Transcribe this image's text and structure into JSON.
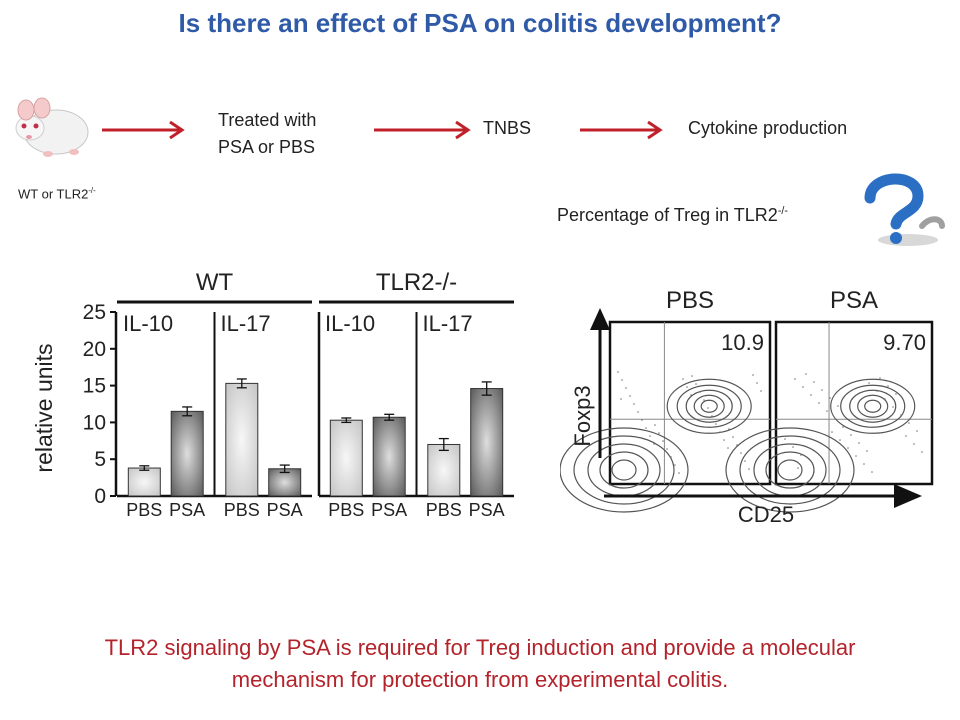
{
  "slide": {
    "title": "Is there an effect of PSA on colitis development?",
    "conclusion_line1": "TLR2 signaling by PSA is required for Treg induction and provide a molecular",
    "conclusion_line2": "mechanism for protection from experimental colitis.",
    "title_color": "#2f5aa8",
    "conclusion_color": "#b3232b",
    "arrow_color": "#c0202a"
  },
  "workflow": {
    "mouse_label": "WT or TLR2",
    "mouse_label_sup": "-/-",
    "step1_line1": "Treated with",
    "step1_line2": "PSA or PBS",
    "step2": "TNBS",
    "step3": "Cytokine production",
    "question_prefix": "Percentage of Treg in TLR2",
    "question_sup": "-/-",
    "question_icon": "question-mark-icon"
  },
  "chart_data": [
    {
      "type": "bar",
      "ylabel": "relative units",
      "ylim": [
        0,
        25
      ],
      "yticks": [
        0,
        5,
        10,
        15,
        20,
        25
      ],
      "panels": [
        {
          "title": "WT",
          "groups": [
            {
              "name": "IL-10",
              "categories": [
                "PBS",
                "PSA"
              ],
              "values": [
                3.8,
                11.5
              ],
              "errors": [
                0.3,
                0.6
              ]
            },
            {
              "name": "IL-17",
              "categories": [
                "PBS",
                "PSA"
              ],
              "values": [
                15.3,
                3.7
              ],
              "errors": [
                0.6,
                0.5
              ]
            }
          ]
        },
        {
          "title": "TLR2-/-",
          "groups": [
            {
              "name": "IL-10",
              "categories": [
                "PBS",
                "PSA"
              ],
              "values": [
                10.3,
                10.7
              ],
              "errors": [
                0.3,
                0.4
              ]
            },
            {
              "name": "IL-17",
              "categories": [
                "PBS",
                "PSA"
              ],
              "values": [
                7.0,
                14.6
              ],
              "errors": [
                0.8,
                0.9
              ]
            }
          ]
        }
      ]
    },
    {
      "type": "contour",
      "xlabel": "CD25",
      "ylabel": "Foxp3",
      "panels": [
        {
          "title": "PBS",
          "value": "10.9"
        },
        {
          "title": "PSA",
          "value": "9.70"
        }
      ]
    }
  ]
}
